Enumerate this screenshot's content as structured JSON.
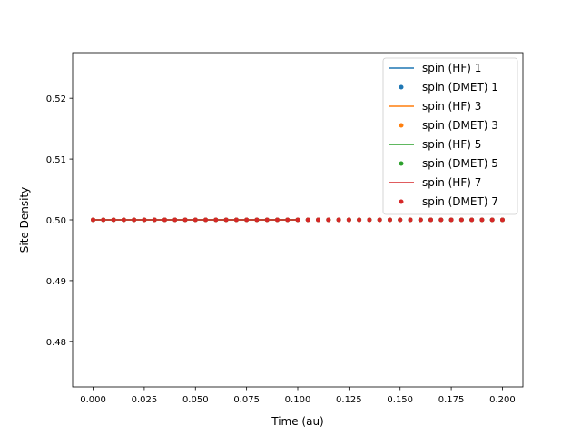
{
  "chart_data": {
    "type": "line",
    "title": "",
    "xlabel": "Time (au)",
    "ylabel": "Site Density",
    "xlim": [
      -0.01,
      0.21
    ],
    "ylim": [
      0.4725,
      0.5275
    ],
    "grid": false,
    "legend_position": "top-right",
    "x_ticks": [
      0.0,
      0.025,
      0.05,
      0.075,
      0.1,
      0.125,
      0.15,
      0.175,
      0.2
    ],
    "x_tick_labels": [
      "0.000",
      "0.025",
      "0.050",
      "0.075",
      "0.100",
      "0.125",
      "0.150",
      "0.175",
      "0.200"
    ],
    "y_ticks": [
      0.48,
      0.49,
      0.5,
      0.51,
      0.52
    ],
    "y_tick_labels": [
      "0.48",
      "0.49",
      "0.50",
      "0.51",
      "0.52"
    ],
    "x": [
      0.0,
      0.005,
      0.01,
      0.015,
      0.02,
      0.025,
      0.03,
      0.035,
      0.04,
      0.045,
      0.05,
      0.055,
      0.06,
      0.065,
      0.07,
      0.075,
      0.08,
      0.085,
      0.09,
      0.095,
      0.1,
      0.105,
      0.11,
      0.115,
      0.12,
      0.125,
      0.13,
      0.135,
      0.14,
      0.145,
      0.15,
      0.155,
      0.16,
      0.165,
      0.17,
      0.175,
      0.18,
      0.185,
      0.19,
      0.195,
      0.2
    ],
    "series": [
      {
        "name": "spin (HF) 1",
        "kind": "line",
        "color": "#1f77b4",
        "x_range": [
          0.0,
          0.1
        ],
        "value": 0.5
      },
      {
        "name": "spin (DMET) 1",
        "kind": "scatter",
        "color": "#1f77b4",
        "value": 0.5
      },
      {
        "name": "spin (HF) 3",
        "kind": "line",
        "color": "#ff7f0e",
        "x_range": [
          0.0,
          0.1
        ],
        "value": 0.5
      },
      {
        "name": "spin (DMET) 3",
        "kind": "scatter",
        "color": "#ff7f0e",
        "value": 0.5
      },
      {
        "name": "spin (HF) 5",
        "kind": "line",
        "color": "#2ca02c",
        "x_range": [
          0.0,
          0.1
        ],
        "value": 0.5
      },
      {
        "name": "spin (DMET) 5",
        "kind": "scatter",
        "color": "#2ca02c",
        "value": 0.5
      },
      {
        "name": "spin (HF) 7",
        "kind": "line",
        "color": "#d62728",
        "x_range": [
          0.0,
          0.1
        ],
        "value": 0.5
      },
      {
        "name": "spin (DMET) 7",
        "kind": "scatter",
        "color": "#d62728",
        "value": 0.5
      }
    ]
  }
}
